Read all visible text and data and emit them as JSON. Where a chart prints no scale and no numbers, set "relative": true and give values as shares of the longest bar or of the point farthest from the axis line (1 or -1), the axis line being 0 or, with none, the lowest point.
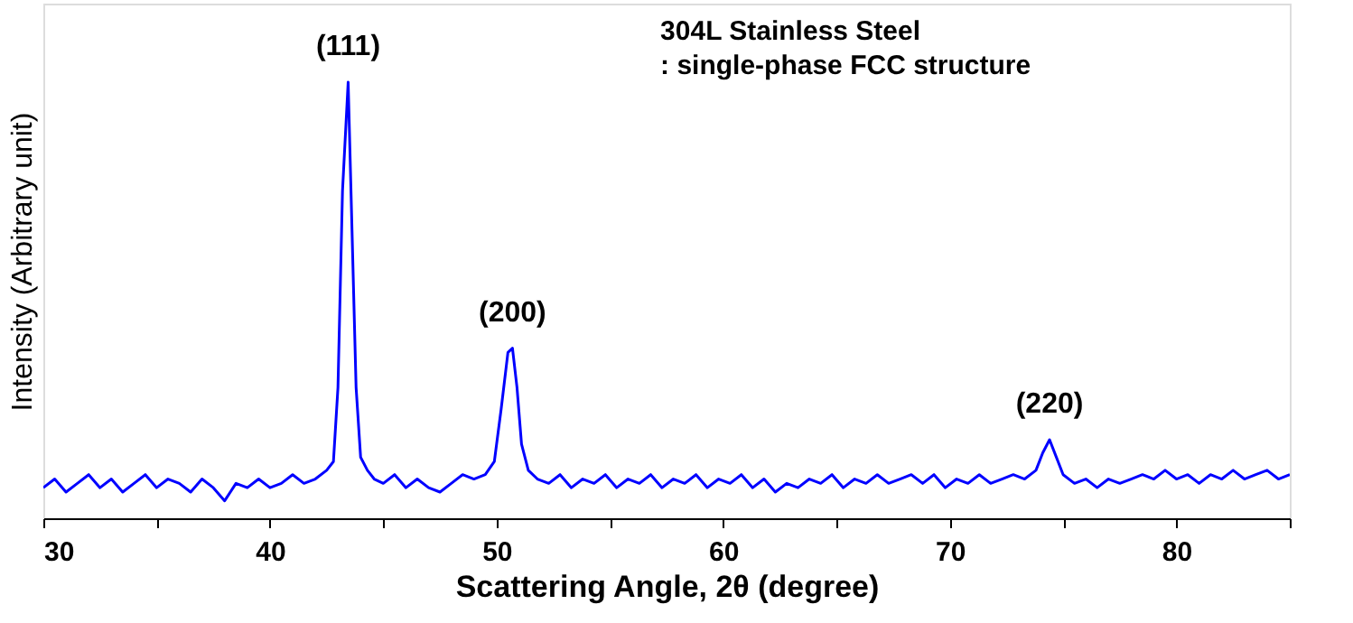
{
  "chart_data": {
    "type": "line",
    "relative": true,
    "xlabel": "Scattering Angle, 2θ (degree)",
    "ylabel": "Intensity (Arbitrary unit)",
    "xlim": [
      30,
      85
    ],
    "xticks": [
      30,
      {
        "value": 35,
        "label": null
      },
      40,
      {
        "value": 45,
        "label": null
      },
      50,
      {
        "value": 55,
        "label": null
      },
      60,
      {
        "value": 65,
        "label": null
      },
      70,
      {
        "value": 75,
        "label": null
      },
      80,
      {
        "value": 85,
        "label": null
      }
    ],
    "grid": false,
    "marker": "none",
    "line_style": "solid",
    "series": [
      {
        "color": "#0000ff",
        "x": [
          30,
          30.5,
          31,
          31.5,
          32,
          32.5,
          33,
          33.5,
          34,
          34.5,
          35,
          35.5,
          36,
          36.5,
          37,
          37.5,
          38,
          38.5,
          39,
          39.5,
          40,
          40.5,
          41,
          41.5,
          42,
          42.5,
          42.8,
          43.0,
          43.2,
          43.45,
          43.6,
          43.8,
          44,
          44.3,
          44.6,
          45,
          45.5,
          46,
          46.5,
          47,
          47.5,
          48,
          48.5,
          49,
          49.5,
          49.9,
          50.2,
          50.5,
          50.7,
          50.9,
          51.1,
          51.4,
          51.8,
          52.3,
          52.8,
          53.3,
          53.8,
          54.3,
          54.8,
          55.3,
          55.8,
          56.3,
          56.8,
          57.3,
          57.8,
          58.3,
          58.8,
          59.3,
          59.8,
          60.3,
          60.8,
          61.3,
          61.8,
          62.3,
          62.8,
          63.3,
          63.8,
          64.3,
          64.8,
          65.3,
          65.8,
          66.3,
          66.8,
          67.3,
          67.8,
          68.3,
          68.8,
          69.3,
          69.8,
          70.3,
          70.8,
          71.3,
          71.8,
          72.3,
          72.8,
          73.3,
          73.8,
          74.1,
          74.4,
          74.7,
          75,
          75.5,
          76,
          76.5,
          77,
          77.5,
          78,
          78.5,
          79,
          79.5,
          80,
          80.5,
          81,
          81.5,
          82,
          82.5,
          83,
          83.5,
          84,
          84.5,
          85
        ],
        "values": [
          0.07,
          0.09,
          0.06,
          0.08,
          0.1,
          0.07,
          0.09,
          0.06,
          0.08,
          0.1,
          0.07,
          0.09,
          0.08,
          0.06,
          0.09,
          0.07,
          0.04,
          0.08,
          0.07,
          0.09,
          0.07,
          0.08,
          0.1,
          0.08,
          0.09,
          0.11,
          0.13,
          0.3,
          0.75,
          1.0,
          0.7,
          0.3,
          0.14,
          0.11,
          0.09,
          0.08,
          0.1,
          0.07,
          0.09,
          0.07,
          0.06,
          0.08,
          0.1,
          0.09,
          0.1,
          0.13,
          0.25,
          0.38,
          0.39,
          0.3,
          0.17,
          0.11,
          0.09,
          0.08,
          0.1,
          0.07,
          0.09,
          0.08,
          0.1,
          0.07,
          0.09,
          0.08,
          0.1,
          0.07,
          0.09,
          0.08,
          0.1,
          0.07,
          0.09,
          0.08,
          0.1,
          0.07,
          0.09,
          0.06,
          0.08,
          0.07,
          0.09,
          0.08,
          0.1,
          0.07,
          0.09,
          0.08,
          0.1,
          0.08,
          0.09,
          0.1,
          0.08,
          0.1,
          0.07,
          0.09,
          0.08,
          0.1,
          0.08,
          0.09,
          0.1,
          0.09,
          0.11,
          0.15,
          0.18,
          0.14,
          0.1,
          0.08,
          0.09,
          0.07,
          0.09,
          0.08,
          0.09,
          0.1,
          0.09,
          0.11,
          0.09,
          0.1,
          0.08,
          0.1,
          0.09,
          0.11,
          0.09,
          0.1,
          0.11,
          0.09,
          0.1
        ]
      }
    ],
    "annotations": [
      {
        "text": "(111)",
        "x": 43.45,
        "y": 1.0
      },
      {
        "text": "(200)",
        "x": 50.7,
        "y": 0.39
      },
      {
        "text": "(220)",
        "x": 74.4,
        "y": 0.18
      },
      "304L Stainless Steel",
      ": single-phase FCC structure"
    ]
  }
}
